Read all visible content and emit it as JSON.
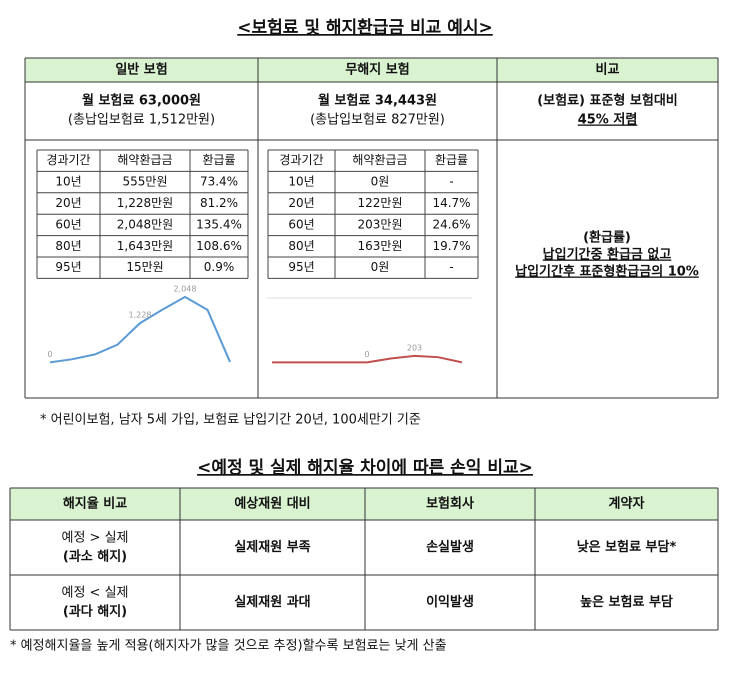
{
  "title1": "<보험료 및 해지환급금 비교 예시>",
  "table1": {
    "headers": [
      "일반 보험",
      "무해지 보험",
      "비교"
    ],
    "premium": [
      [
        "월 보험료 63,000원",
        "(총납입보험료 1,512만원)"
      ],
      [
        "월 보험료 34,443원",
        "(총납입보험료 827만원)"
      ],
      [
        "(보험료) 표준형 보험대비",
        "45% 저렴"
      ]
    ],
    "subtables": [
      {
        "headers": [
          "경과기간",
          "해약환급금",
          "환급률"
        ],
        "rows": [
          [
            "10년",
            "555만원",
            "73.4%"
          ],
          [
            "20년",
            "1,228만원",
            "81.2%"
          ],
          [
            "60년",
            "2,048만원",
            "135.4%"
          ],
          [
            "80년",
            "1,643만원",
            "108.6%"
          ],
          [
            "95년",
            "15만원",
            "0.9%"
          ]
        ]
      },
      {
        "headers": [
          "경과기간",
          "해약환급금",
          "환급률"
        ],
        "rows": [
          [
            "10년",
            "0원",
            "-"
          ],
          [
            "20년",
            "122만원",
            "14.7%"
          ],
          [
            "60년",
            "203만원",
            "24.6%"
          ],
          [
            "80년",
            "163만원",
            "19.7%"
          ],
          [
            "95년",
            "0원",
            "-"
          ]
        ]
      }
    ],
    "charts": [
      {
        "type": "line",
        "values": [
          0,
          100,
          250,
          555,
          1228,
          1650,
          2048,
          1643,
          15
        ],
        "value_labels": [
          "0",
          null,
          null,
          null,
          "1,228",
          null,
          "2,048",
          null,
          null
        ],
        "color": "#5b9bd5",
        "ylim": [
          -300,
          2200
        ]
      },
      {
        "type": "line",
        "values": [
          0,
          0,
          0,
          0,
          0,
          122,
          203,
          163,
          0
        ],
        "value_labels": [
          null,
          null,
          null,
          null,
          "0",
          null,
          "203",
          null,
          null
        ],
        "color": "#c0504d",
        "ylim": [
          -300,
          2200
        ]
      }
    ],
    "refund_note": [
      "(환급률)",
      "납입기간중 환급금 없고",
      "납입기간후 표준형환급금의 10%"
    ]
  },
  "footnote1": "* 어린이보험, 남자 5세 가입, 보험료 납입기간 20년, 100세만기 기준",
  "title2": "<예정 및 실제 해지율 차이에 따른 손익 비교>",
  "table2": {
    "headers": [
      "해지율 비교",
      "예상재원 대비",
      "보험회사",
      "계약자"
    ],
    "rows": [
      [
        [
          "예정 > 실제",
          "(과소 해지)"
        ],
        [
          "실제재원 부족"
        ],
        [
          "손실발생"
        ],
        [
          "낮은 보험료 부담*"
        ]
      ],
      [
        [
          "예정 < 실제",
          "(과다 해지)"
        ],
        [
          "실제재원 과대"
        ],
        [
          "이익발생"
        ],
        [
          "높은 보험료 부담"
        ]
      ]
    ]
  },
  "footnote2": "* 예정해지율을 높게 적용(해지자가 많을 것으로 추정)할수록 보험료는 낮게 산출"
}
